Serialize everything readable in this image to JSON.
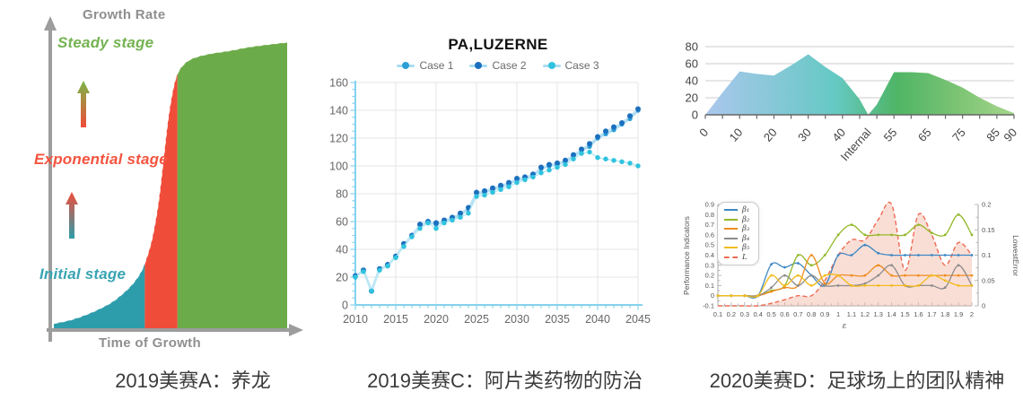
{
  "captions": {
    "a": "2019美赛A：养龙",
    "c": "2019美赛C：阿片类药物的防治",
    "d": "2020美赛D：足球场上的团队精神"
  },
  "chart_data": [
    {
      "id": "dragon-growth",
      "type": "area",
      "xlabel": "Time of Growth",
      "ylabel": "Growth Rate",
      "axis_color": "#9d9d9d",
      "curve": [
        [
          0,
          1
        ],
        [
          6,
          2
        ],
        [
          12,
          3.5
        ],
        [
          18,
          5.5
        ],
        [
          24,
          8
        ],
        [
          29,
          11
        ],
        [
          34,
          15
        ],
        [
          38,
          20
        ],
        [
          41,
          27
        ],
        [
          43,
          34
        ],
        [
          45,
          44
        ],
        [
          47,
          58
        ],
        [
          49,
          72
        ],
        [
          51,
          82
        ],
        [
          53,
          88
        ],
        [
          56,
          91.5
        ],
        [
          60,
          93.5
        ],
        [
          67,
          95
        ],
        [
          75,
          96
        ],
        [
          85,
          97.5
        ],
        [
          100,
          99
        ]
      ],
      "stages": [
        {
          "label": "Initial stage",
          "from": 0,
          "to": 39,
          "color": "#2d9dab",
          "label_color": "#39a4b2"
        },
        {
          "label": "Exponential stage",
          "from": 39,
          "to": 53,
          "color": "#f04c3a",
          "label_color": "#f4543f"
        },
        {
          "label": "Steady stage",
          "from": 53,
          "to": 100,
          "color": "#6cab49",
          "label_color": "#74b351"
        }
      ],
      "gradient_arrows": [
        {
          "name": "exp-to-steady-arrow",
          "top_color": "#7ab545",
          "bottom_color": "#f04c3a"
        },
        {
          "name": "initial-to-exp-arrow",
          "top_color": "#f04c3a",
          "bottom_color": "#2d9dab"
        }
      ]
    },
    {
      "id": "pa-luzerne",
      "type": "line",
      "title": "PA,LUZERNE",
      "legend_position": "top",
      "x_start": 2010,
      "xticks": [
        2010,
        2015,
        2020,
        2025,
        2030,
        2035,
        2040,
        2045
      ],
      "yticks": [
        0,
        20,
        40,
        60,
        80,
        100,
        120,
        140,
        160
      ],
      "ylim": [
        0,
        160
      ],
      "grid": true,
      "axis_color": "#85d2ee",
      "series": [
        {
          "name": "Case 1",
          "marker": "#2d9fd6",
          "line": "#aadcf2",
          "values": [
            20,
            25,
            10,
            26,
            28,
            35,
            43,
            50,
            57,
            60,
            58,
            60,
            62,
            65,
            69,
            80,
            81,
            83,
            85,
            87,
            90,
            91,
            93,
            98,
            100,
            101,
            103,
            107,
            111,
            114,
            120,
            123,
            126,
            130,
            134,
            140
          ]
        },
        {
          "name": "Case 2",
          "marker": "#1c6fbe",
          "line": "#c3e4f5",
          "values": [
            21,
            25,
            10,
            26,
            29,
            35,
            44,
            50,
            58,
            60,
            59,
            61,
            63,
            66,
            70,
            81,
            82,
            84,
            86,
            88,
            91,
            92,
            94,
            99,
            101,
            102,
            104,
            108,
            112,
            116,
            121,
            125,
            128,
            131,
            136,
            141
          ]
        },
        {
          "name": "Case 3",
          "marker": "#2fc3de",
          "line": "#bdeaf6",
          "values": [
            20,
            24,
            10,
            25,
            28,
            34,
            42,
            49,
            55,
            59,
            55,
            59,
            61,
            63,
            66,
            78,
            79,
            81,
            83,
            85,
            88,
            90,
            92,
            95,
            97,
            99,
            101,
            105,
            109,
            110,
            106,
            105,
            104,
            103,
            102,
            100
          ]
        }
      ]
    },
    {
      "id": "internal-interval",
      "type": "area",
      "yticks": [
        0,
        20,
        40,
        60,
        80
      ],
      "ylim": [
        0,
        80
      ],
      "grid": true,
      "x": [
        0,
        5,
        10,
        15,
        20,
        25,
        30,
        35,
        40,
        45,
        47.5,
        50,
        55,
        60,
        65,
        70,
        75,
        80,
        85,
        90
      ],
      "values": [
        0,
        26,
        51,
        48,
        46,
        58,
        71,
        56,
        43,
        18,
        0,
        12,
        50,
        50,
        49,
        41,
        32,
        20,
        10,
        2
      ],
      "xtick_pos": [
        0,
        10,
        20,
        30,
        40,
        47.5,
        55,
        65,
        75,
        85,
        90
      ],
      "xtick_labels": [
        "0",
        "10",
        "20",
        "30",
        "40",
        "Internal",
        "55",
        "65",
        "75",
        "85",
        "90"
      ],
      "gradient": [
        "#abc7ed",
        "#65c9c4",
        "#4fb566",
        "#7cc474",
        "#a6d68c"
      ]
    },
    {
      "id": "performance-indicators",
      "type": "line",
      "xlabel": "ε",
      "ylabel_left": "Performance Indicators",
      "ylabel_right": "LowestError",
      "yticks_left": [
        "-0.1",
        "0",
        "0.1",
        "0.2",
        "0.3",
        "0.4",
        "0.5",
        "0.6",
        "0.7",
        "0.8",
        "0.9"
      ],
      "yticks_right": [
        "0",
        "0.05",
        "0.1",
        "0.15",
        "0.2"
      ],
      "ylim_left": [
        -0.1,
        0.9
      ],
      "ylim_right": [
        0,
        0.2
      ],
      "xticks": [
        "0.1",
        "0.2",
        "0.3",
        "0.4",
        "0.5",
        "0.6",
        "0.7",
        "0.8",
        "0.9",
        "1",
        "1.1",
        "1.2",
        "1.3",
        "1.4",
        "1.5",
        "1.6",
        "1.7",
        "1.8",
        "1.9",
        "2"
      ],
      "x": [
        0.1,
        0.2,
        0.3,
        0.4,
        0.5,
        0.6,
        0.7,
        0.8,
        0.9,
        1,
        1.1,
        1.2,
        1.3,
        1.4,
        1.5,
        1.6,
        1.7,
        1.8,
        1.9,
        2
      ],
      "series": [
        {
          "name": "β₁",
          "color": "#3d87c3",
          "values": [
            0,
            0,
            0,
            0,
            0.31,
            0.28,
            0.32,
            0.2,
            0.1,
            0.4,
            0.4,
            0.5,
            0.42,
            0.4,
            0.4,
            0.4,
            0.4,
            0.4,
            0.4,
            0.4
          ]
        },
        {
          "name": "β₂",
          "color": "#93b829",
          "values": [
            0,
            0,
            0,
            0,
            0.05,
            0.1,
            0.4,
            0.3,
            0.4,
            0.6,
            0.7,
            0.6,
            0.6,
            0.6,
            0.6,
            0.7,
            0.62,
            0.6,
            0.8,
            0.6
          ]
        },
        {
          "name": "β₃",
          "color": "#ef8c1f",
          "values": [
            0,
            0,
            0,
            0,
            0.04,
            0.08,
            0.1,
            0.4,
            0.12,
            0.2,
            0.2,
            0.2,
            0.3,
            0.2,
            0.2,
            0.2,
            0.2,
            0.2,
            0.2,
            0.2
          ]
        },
        {
          "name": "β₄",
          "color": "#8c8c8c",
          "values": [
            0,
            0,
            0,
            0,
            0.08,
            0.2,
            0.1,
            0.2,
            0.1,
            0.1,
            0.1,
            0.12,
            0.2,
            0.3,
            0.1,
            0.1,
            0.1,
            0.08,
            0.3,
            0.1
          ]
        },
        {
          "name": "β₅",
          "color": "#f2bb1d",
          "values": [
            0,
            0,
            0,
            0,
            0.2,
            0.1,
            0.2,
            0.1,
            0.2,
            0.2,
            0.1,
            0.1,
            0.1,
            0.1,
            0.1,
            0.1,
            0.2,
            0.15,
            0.1,
            0.1
          ]
        },
        {
          "name": "L",
          "color": "#ef6a52",
          "axis": "right",
          "style": "dashed",
          "fill": "#f2b5a4",
          "values": [
            0,
            0,
            0,
            0,
            0.005,
            0.012,
            0.02,
            0.02,
            0.05,
            0.1,
            0.13,
            0.13,
            0.17,
            0.2,
            0.07,
            0.18,
            0.14,
            0.08,
            0.125,
            0.1
          ]
        }
      ]
    }
  ]
}
